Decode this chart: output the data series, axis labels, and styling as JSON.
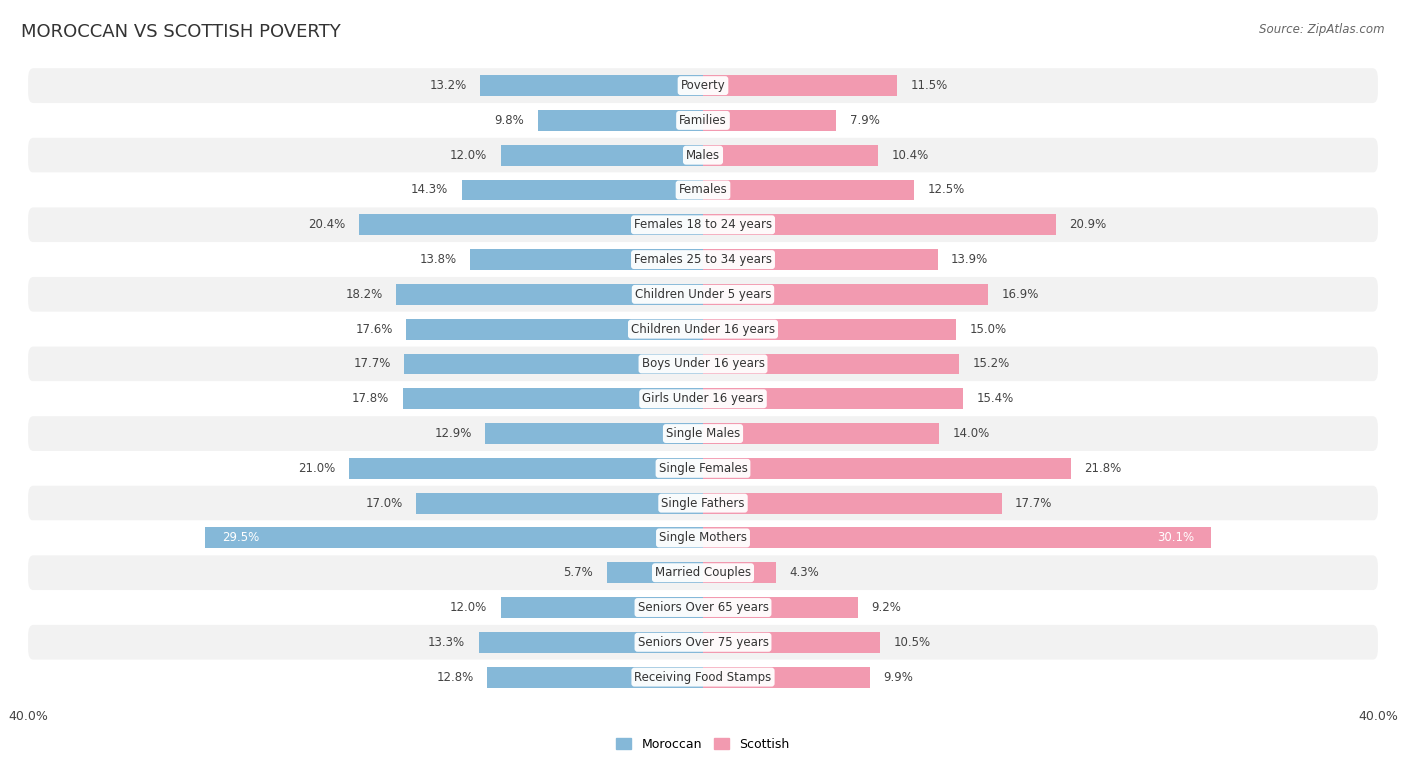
{
  "title": "MOROCCAN VS SCOTTISH POVERTY",
  "source": "Source: ZipAtlas.com",
  "categories": [
    "Poverty",
    "Families",
    "Males",
    "Females",
    "Females 18 to 24 years",
    "Females 25 to 34 years",
    "Children Under 5 years",
    "Children Under 16 years",
    "Boys Under 16 years",
    "Girls Under 16 years",
    "Single Males",
    "Single Females",
    "Single Fathers",
    "Single Mothers",
    "Married Couples",
    "Seniors Over 65 years",
    "Seniors Over 75 years",
    "Receiving Food Stamps"
  ],
  "moroccan": [
    13.2,
    9.8,
    12.0,
    14.3,
    20.4,
    13.8,
    18.2,
    17.6,
    17.7,
    17.8,
    12.9,
    21.0,
    17.0,
    29.5,
    5.7,
    12.0,
    13.3,
    12.8
  ],
  "scottish": [
    11.5,
    7.9,
    10.4,
    12.5,
    20.9,
    13.9,
    16.9,
    15.0,
    15.2,
    15.4,
    14.0,
    21.8,
    17.7,
    30.1,
    4.3,
    9.2,
    10.5,
    9.9
  ],
  "moroccan_color": "#85b8d8",
  "scottish_color": "#f29ab0",
  "background_color": "#ffffff",
  "row_colors": [
    "#f2f2f2",
    "#ffffff"
  ],
  "xlim": 40.0,
  "bar_height": 0.6,
  "title_fontsize": 13,
  "label_fontsize": 8.5,
  "value_fontsize": 8.5,
  "source_fontsize": 8.5
}
